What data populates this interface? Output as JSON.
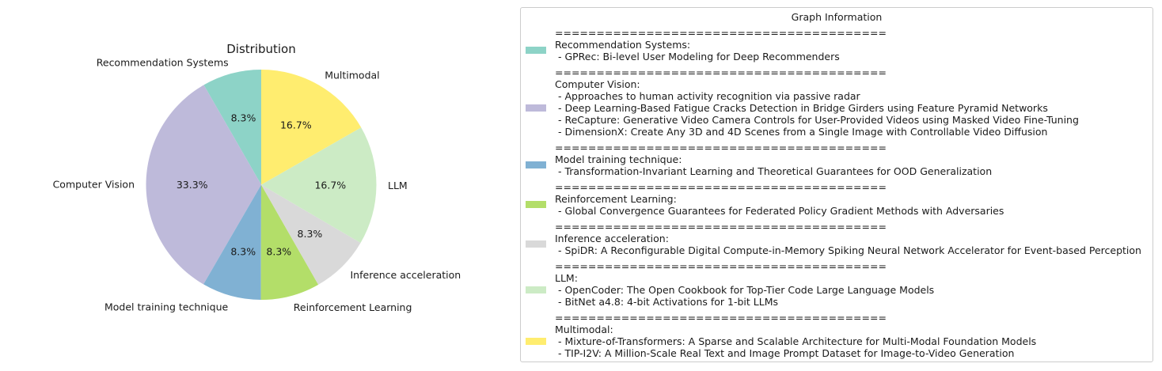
{
  "chart_data": {
    "type": "pie",
    "title": "Distribution",
    "start_angle_deg": 90,
    "direction": "counterclockwise",
    "slices": [
      {
        "label": "Recommendation Systems",
        "value": 8.3,
        "pct_label": "8.3%",
        "color": "#8dd3c7"
      },
      {
        "label": "Computer Vision",
        "value": 33.3,
        "pct_label": "33.3%",
        "color": "#bebada"
      },
      {
        "label": "Model training technique",
        "value": 8.3,
        "pct_label": "8.3%",
        "color": "#80b1d3"
      },
      {
        "label": "Reinforcement Learning",
        "value": 8.3,
        "pct_label": "8.3%",
        "color": "#b3de69"
      },
      {
        "label": "Inference acceleration",
        "value": 8.3,
        "pct_label": "8.3%",
        "color": "#d9d9d9"
      },
      {
        "label": "LLM",
        "value": 16.7,
        "pct_label": "16.7%",
        "color": "#ccebc5"
      },
      {
        "label": "Multimodal",
        "value": 16.7,
        "pct_label": "16.7%",
        "color": "#ffed6f"
      }
    ]
  },
  "legend": {
    "title": "Graph Information",
    "separator": "========================================",
    "entries": [
      {
        "name": "Recommendation Systems:",
        "color": "#8dd3c7",
        "papers": [
          " - GPRec: Bi-level User Modeling for Deep Recommenders"
        ]
      },
      {
        "name": "Computer Vision:",
        "color": "#bebada",
        "papers": [
          " - Approaches to human activity recognition via passive radar",
          " - Deep Learning-Based Fatigue Cracks Detection in Bridge Girders using Feature Pyramid Networks",
          " - ReCapture: Generative Video Camera Controls for User-Provided Videos using Masked Video Fine-Tuning",
          " - DimensionX: Create Any 3D and 4D Scenes from a Single Image with Controllable Video Diffusion"
        ]
      },
      {
        "name": "Model training technique:",
        "color": "#80b1d3",
        "papers": [
          " - Transformation-Invariant Learning and Theoretical Guarantees for OOD Generalization"
        ]
      },
      {
        "name": "Reinforcement Learning:",
        "color": "#b3de69",
        "papers": [
          " - Global Convergence Guarantees for Federated Policy Gradient Methods with Adversaries"
        ]
      },
      {
        "name": "Inference acceleration:",
        "color": "#d9d9d9",
        "papers": [
          " - SpiDR: A Reconfigurable Digital Compute-in-Memory Spiking Neural Network Accelerator for Event-based Perception"
        ]
      },
      {
        "name": "LLM:",
        "color": "#ccebc5",
        "papers": [
          " - OpenCoder: The Open Cookbook for Top-Tier Code Large Language Models",
          " - BitNet a4.8: 4-bit Activations for 1-bit LLMs"
        ]
      },
      {
        "name": "Multimodal:",
        "color": "#ffed6f",
        "papers": [
          " - Mixture-of-Transformers: A Sparse and Scalable Architecture for Multi-Modal Foundation Models",
          " - TIP-I2V: A Million-Scale Real Text and Image Prompt Dataset for Image-to-Video Generation"
        ]
      }
    ]
  }
}
